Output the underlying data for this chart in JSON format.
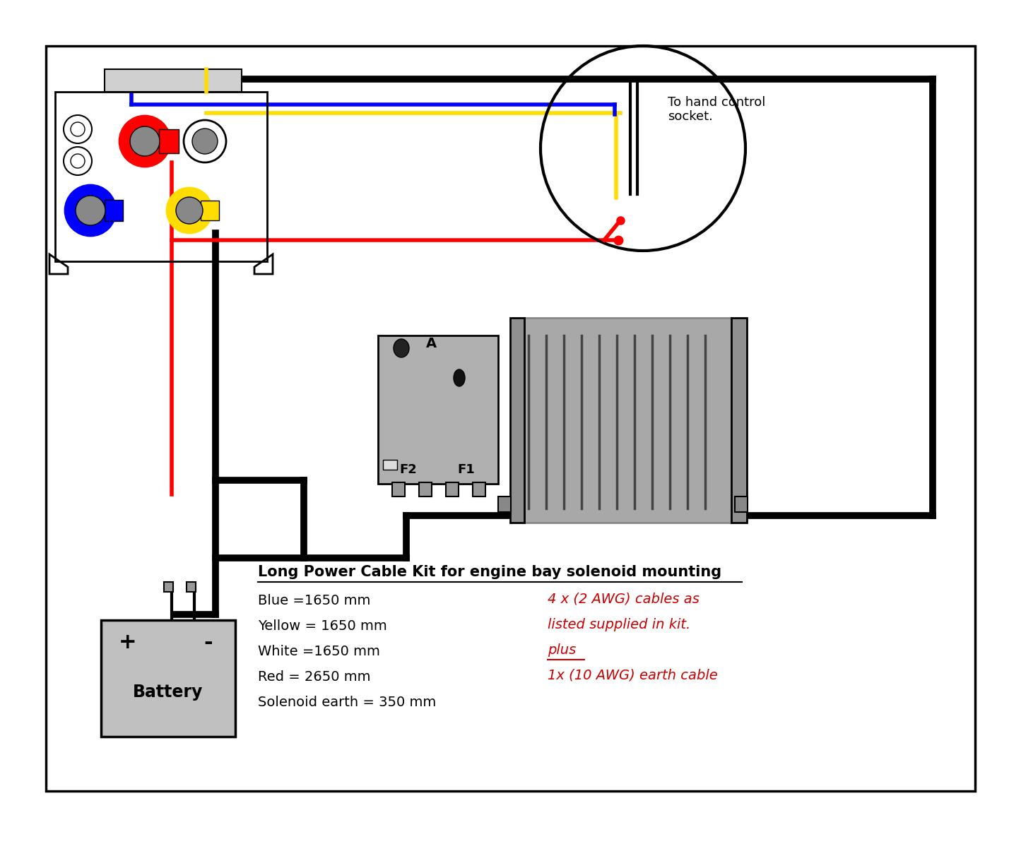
{
  "bg_color": "#ffffff",
  "wire_blue": "#0000ff",
  "wire_red": "#ff0000",
  "wire_yellow": "#ffdd00",
  "wire_black": "#000000",
  "text_black": "#000000",
  "text_red": "#cc0000",
  "title_text": "Long Power Cable Kit for engine bay solenoid mounting",
  "label_blue": "Blue =1650 mm",
  "label_yellow": "Yellow = 1650 mm",
  "label_white": "White =1650 mm",
  "label_red": "Red = 2650 mm",
  "label_earth": "Solenoid earth = 350 mm",
  "label_right1": "4 x (2 AWG) cables as",
  "label_right2": "listed supplied in kit.",
  "label_right3": "plus",
  "label_right4": "1x (10 AWG) earth cable",
  "socket_label": "To hand control\nsocket.",
  "label_A": "A",
  "label_F2": "F2",
  "label_F1": "F1",
  "label_battery": "Battery",
  "label_plus": "+",
  "label_minus": "-"
}
